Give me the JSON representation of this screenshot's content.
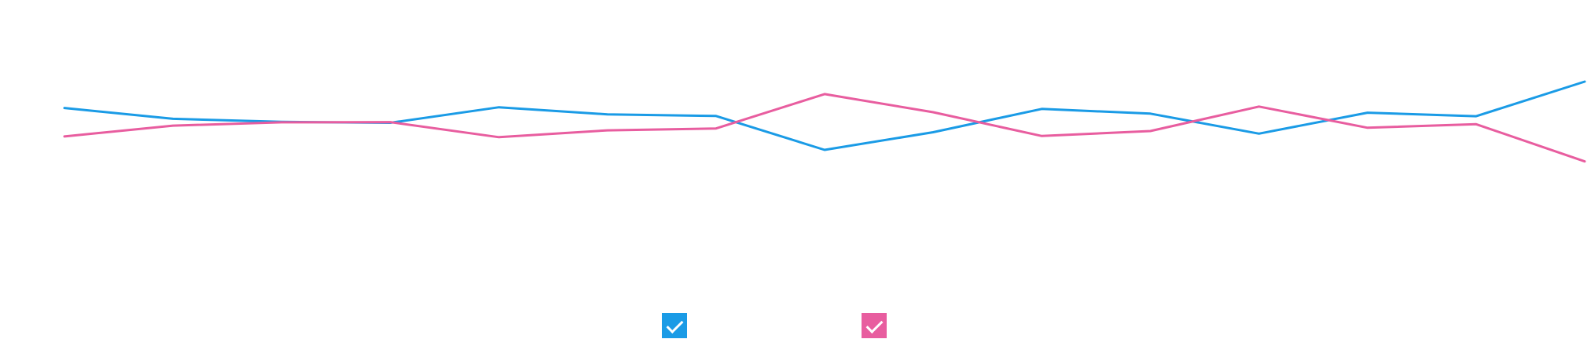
{
  "chart_data": {
    "type": "line",
    "x": [
      0,
      1,
      2,
      3,
      4,
      5,
      6,
      7,
      8,
      9,
      10,
      11,
      12,
      13,
      14
    ],
    "series": [
      {
        "color": "#1a9be6",
        "values": [
          64.8,
          60.2,
          58.9,
          58.5,
          65.1,
          62.1,
          61.4,
          47.0,
          54.5,
          64.4,
          62.4,
          53.9,
          62.8,
          61.3,
          76.0
        ]
      },
      {
        "color": "#e85d9f",
        "values": [
          52.7,
          57.3,
          58.7,
          58.8,
          52.4,
          55.3,
          56.1,
          70.7,
          63.0,
          52.9,
          55.0,
          65.4,
          56.4,
          57.9,
          42.1
        ]
      }
    ],
    "ylim": [
      0,
      100
    ],
    "grid": false,
    "legend": "bottom-center"
  }
}
